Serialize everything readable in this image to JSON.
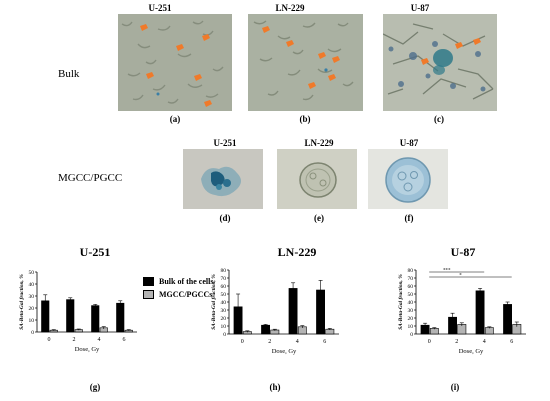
{
  "figure": {
    "row_bulk_label": "Bulk",
    "row_mgcc_label": "MGCC/PGCC",
    "top_headers": [
      "U-251",
      "LN-229",
      "U-87"
    ],
    "mid_headers": [
      "U-251",
      "LN-229",
      "U-87"
    ],
    "panel_letters": [
      "(a)",
      "(b)",
      "(c)",
      "(d)",
      "(e)",
      "(f)",
      "(g)",
      "(h)",
      "(i)"
    ]
  },
  "legend": {
    "bulk": "Bulk of the cells",
    "mgcc": "MGCC/PGCCs"
  },
  "colors": {
    "bulk": "#000000",
    "mgcc": "#b4b4b4",
    "stain": "#3a7fa6",
    "marker": "#f07a2a"
  },
  "chart_data": [
    {
      "type": "bar",
      "title": "U-251",
      "ylabel": "SA-Beta-Gal fraction, %",
      "xlabel": "Dose, Gy",
      "categories": [
        "0",
        "2",
        "4",
        "6"
      ],
      "yticks": [
        "0",
        "10",
        "20",
        "30",
        "40",
        "50"
      ],
      "ylim": [
        0,
        50
      ],
      "series": [
        {
          "name": "Bulk of the cells",
          "values": [
            26,
            27,
            22,
            24
          ],
          "errors": [
            5,
            1.5,
            1,
            2
          ]
        },
        {
          "name": "MGCC/PGCCs",
          "values": [
            1.5,
            2,
            3.5,
            1.5
          ],
          "errors": [
            0.5,
            0.5,
            1,
            0.5
          ]
        }
      ],
      "significance": []
    },
    {
      "type": "bar",
      "title": "LN-229",
      "ylabel": "SA-Beta-Gal fraction, %",
      "xlabel": "Dose, Gy",
      "categories": [
        "0",
        "2",
        "4",
        "6"
      ],
      "yticks": [
        "0",
        "10",
        "20",
        "30",
        "40",
        "50",
        "60",
        "70",
        "80"
      ],
      "ylim": [
        0,
        80
      ],
      "series": [
        {
          "name": "Bulk of the cells",
          "values": [
            34,
            11,
            57,
            55
          ],
          "errors": [
            16,
            1,
            7,
            12
          ]
        },
        {
          "name": "MGCC/PGCCs",
          "values": [
            3,
            5,
            9,
            6
          ],
          "errors": [
            1,
            1,
            1.5,
            1
          ]
        }
      ],
      "significance": []
    },
    {
      "type": "bar",
      "title": "U-87",
      "ylabel": "SA-Beta-Gal fraction, %",
      "xlabel": "Dose, Gy",
      "categories": [
        "0",
        "2",
        "4",
        "6"
      ],
      "yticks": [
        "0",
        "10",
        "20",
        "30",
        "40",
        "50",
        "60",
        "70",
        "80"
      ],
      "ylim": [
        0,
        80
      ],
      "series": [
        {
          "name": "Bulk of the cells",
          "values": [
            11,
            21,
            54,
            37
          ],
          "errors": [
            2.5,
            5,
            3,
            3
          ]
        },
        {
          "name": "MGCC/PGCCs",
          "values": [
            7,
            12,
            8,
            12
          ],
          "errors": [
            1,
            2,
            1,
            3
          ]
        }
      ],
      "significance": [
        {
          "label": "***",
          "from": 0,
          "to": 2
        },
        {
          "label": "*",
          "from": 0,
          "to": 3
        }
      ]
    }
  ]
}
